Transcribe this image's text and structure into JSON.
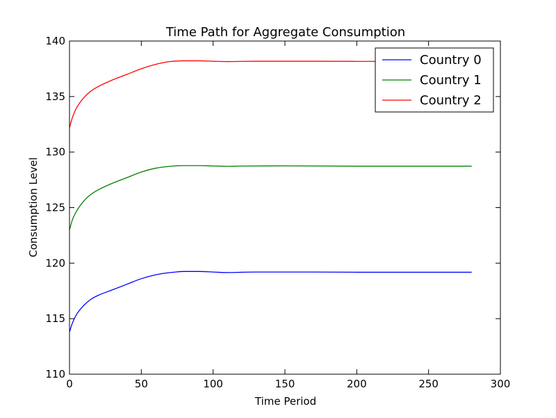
{
  "chart_data": {
    "type": "line",
    "title": "Time Path for Aggregate Consumption",
    "xlabel": "Time Period",
    "ylabel": "Consumption Level",
    "xlim": [
      0,
      300
    ],
    "ylim": [
      110,
      140
    ],
    "xticks": [
      0,
      50,
      100,
      150,
      200,
      250,
      300
    ],
    "yticks": [
      110,
      115,
      120,
      125,
      130,
      135,
      140
    ],
    "grid": false,
    "legend_position": "upper right",
    "x": [
      0,
      2,
      5,
      10,
      15,
      20,
      30,
      40,
      50,
      60,
      70,
      80,
      90,
      100,
      110,
      120,
      130,
      150,
      170,
      200,
      230,
      260,
      280
    ],
    "series": [
      {
        "name": "Country 0",
        "color": "#0000ff",
        "values": [
          113.8,
          114.6,
          115.4,
          116.2,
          116.75,
          117.1,
          117.6,
          118.1,
          118.6,
          118.95,
          119.15,
          119.25,
          119.25,
          119.2,
          119.15,
          119.18,
          119.2,
          119.2,
          119.2,
          119.18,
          119.18,
          119.18,
          119.18
        ]
      },
      {
        "name": "Country 1",
        "color": "#008000",
        "values": [
          123.0,
          123.9,
          124.7,
          125.6,
          126.2,
          126.6,
          127.2,
          127.7,
          128.2,
          128.55,
          128.72,
          128.78,
          128.78,
          128.75,
          128.72,
          128.74,
          128.75,
          128.76,
          128.75,
          128.73,
          128.73,
          128.73,
          128.73
        ]
      },
      {
        "name": "Country 2",
        "color": "#ff0000",
        "values": [
          132.2,
          133.1,
          134.0,
          134.9,
          135.5,
          135.9,
          136.5,
          137.0,
          137.5,
          137.9,
          138.15,
          138.22,
          138.22,
          138.18,
          138.15,
          138.17,
          138.18,
          138.18,
          138.18,
          138.17,
          138.17,
          138.17,
          138.17
        ]
      }
    ]
  }
}
